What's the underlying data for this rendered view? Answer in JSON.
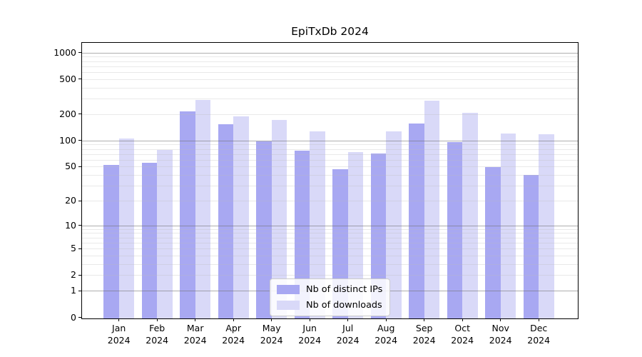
{
  "chart_data": {
    "type": "bar",
    "title": "EpiTxDb 2024",
    "categories": [
      "Jan",
      "Feb",
      "Mar",
      "Apr",
      "May",
      "Jun",
      "Jul",
      "Aug",
      "Sep",
      "Oct",
      "Nov",
      "Dec"
    ],
    "category_year": "2024",
    "series": [
      {
        "name": "Nb of distinct IPs",
        "color": "#a8a8f2",
        "values": [
          52,
          55,
          215,
          153,
          97,
          76,
          47,
          71,
          157,
          96,
          49,
          40
        ]
      },
      {
        "name": "Nb of downloads",
        "color": "#d9d9f8",
        "values": [
          106,
          78,
          290,
          190,
          170,
          127,
          73,
          127,
          284,
          208,
          120,
          117
        ]
      }
    ],
    "y_axis": {
      "scale": "log1p",
      "tick_values": [
        1000,
        500,
        200,
        100,
        50,
        20,
        10,
        5,
        2,
        1,
        0
      ],
      "top_value": 1300
    },
    "grid": {
      "visible": true,
      "major_lines": [
        1,
        10,
        100,
        1000
      ],
      "minor_lines": [
        2,
        3,
        4,
        5,
        6,
        7,
        8,
        9,
        20,
        30,
        40,
        50,
        60,
        70,
        80,
        90,
        200,
        300,
        400,
        500,
        600,
        700,
        800,
        900
      ]
    },
    "legend": {
      "position": "lower-center"
    }
  }
}
